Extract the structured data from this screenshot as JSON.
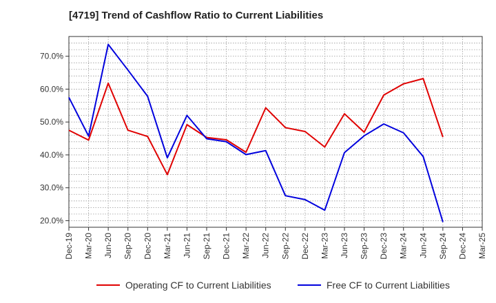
{
  "chart_data": {
    "type": "line",
    "title": "[4719]  Trend of Cashflow Ratio to Current Liabilities",
    "categories": [
      "Dec-19",
      "Mar-20",
      "Jun-20",
      "Sep-20",
      "Dec-20",
      "Mar-21",
      "Jun-21",
      "Sep-21",
      "Dec-21",
      "Mar-22",
      "Jun-22",
      "Sep-22",
      "Dec-22",
      "Mar-23",
      "Jun-23",
      "Sep-23",
      "Dec-23",
      "Mar-24",
      "Jun-24",
      "Sep-24",
      "Dec-24",
      "Mar-25"
    ],
    "series": [
      {
        "name": "Operating CF to Current Liabilities",
        "color": "#e00000",
        "values": [
          47.5,
          44.5,
          61.8,
          47.5,
          45.6,
          34.0,
          49.2,
          45.3,
          44.6,
          40.8,
          54.3,
          48.3,
          47.1,
          42.4,
          52.5,
          46.9,
          58.2,
          61.6,
          63.2,
          45.4,
          null,
          null
        ]
      },
      {
        "name": "Free CF to Current Liabilities",
        "color": "#0000dd",
        "values": [
          57.5,
          45.7,
          73.6,
          65.8,
          57.8,
          39.1,
          52.0,
          44.9,
          44.0,
          40.1,
          41.3,
          27.6,
          26.4,
          23.2,
          40.7,
          45.8,
          49.4,
          46.7,
          39.5,
          19.6,
          null,
          null
        ]
      }
    ],
    "y_ticks": [
      "20.0%",
      "30.0%",
      "40.0%",
      "50.0%",
      "60.0%",
      "70.0%"
    ],
    "y_tick_values": [
      20,
      30,
      40,
      50,
      60,
      70
    ],
    "ylim": [
      18,
      76
    ],
    "grid": true,
    "legend_position": "bottom"
  }
}
